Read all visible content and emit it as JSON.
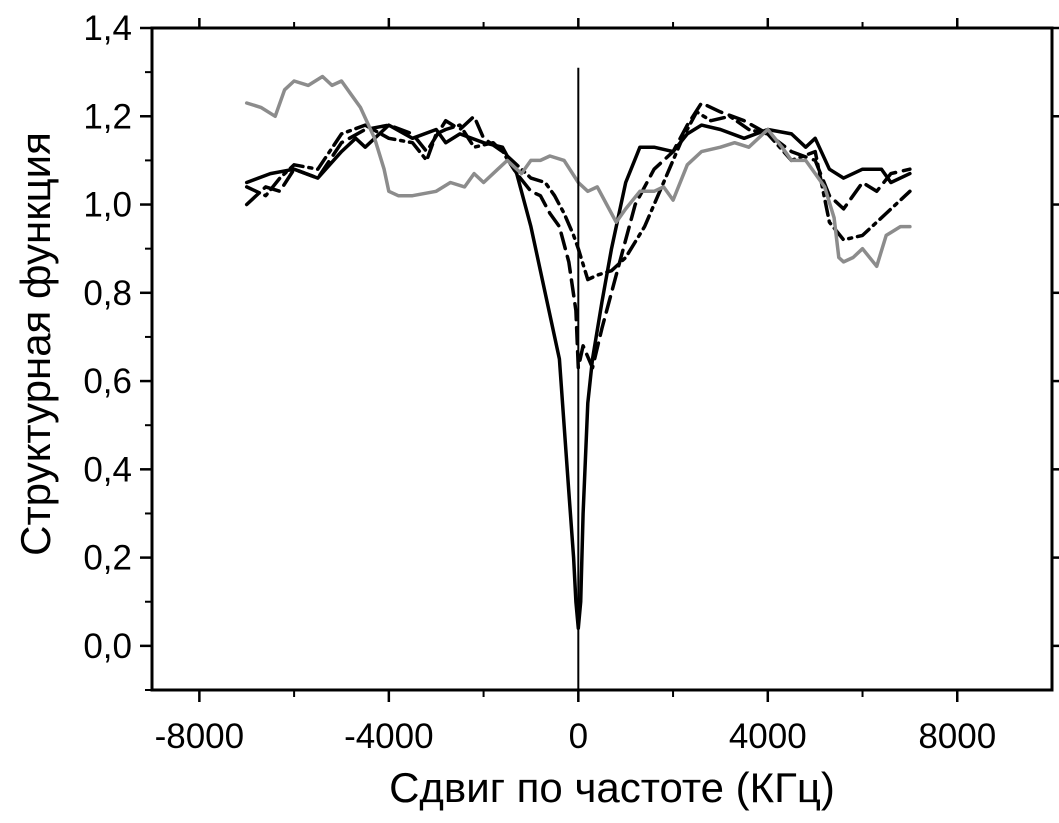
{
  "chart_data": {
    "type": "line",
    "xlabel": "Сдвиг по частоте (КГц)",
    "ylabel": "Структурная функция",
    "xlim": [
      -9000,
      10000
    ],
    "ylim": [
      -0.1,
      1.4
    ],
    "x_ticks": [
      -8000,
      -4000,
      0,
      4000,
      8000
    ],
    "x_tick_labels": [
      "-8000",
      "-4000",
      "0",
      "4000",
      "8000"
    ],
    "y_ticks": [
      0.0,
      0.2,
      0.4,
      0.6,
      0.8,
      1.0,
      1.2,
      1.4
    ],
    "y_tick_labels": [
      "0,0",
      "0,2",
      "0,4",
      "0,6",
      "0,8",
      "1,0",
      "1,2",
      "1,4"
    ],
    "grid": false,
    "legend": "none",
    "reference_line_x": 0,
    "series": [
      {
        "style": "solid",
        "color": "#000000",
        "x": [
          -7000,
          -6500,
          -6000,
          -5500,
          -5000,
          -4700,
          -4500,
          -4200,
          -4000,
          -3500,
          -3000,
          -2800,
          -2500,
          -2000,
          -1600,
          -1300,
          -1000,
          -800,
          -600,
          -400,
          -300,
          -200,
          -100,
          -50,
          0,
          50,
          100,
          200,
          300,
          500,
          700,
          1000,
          1300,
          1600,
          2000,
          2300,
          2600,
          3000,
          3500,
          4000,
          4500,
          4800,
          5000,
          5300,
          5600,
          6000,
          6400,
          6600,
          7000
        ],
        "y": [
          1.05,
          1.07,
          1.08,
          1.06,
          1.12,
          1.15,
          1.13,
          1.16,
          1.18,
          1.15,
          1.17,
          1.14,
          1.16,
          1.14,
          1.13,
          1.07,
          0.95,
          0.85,
          0.75,
          0.65,
          0.5,
          0.35,
          0.2,
          0.1,
          0.04,
          0.1,
          0.3,
          0.55,
          0.65,
          0.78,
          0.9,
          1.05,
          1.13,
          1.13,
          1.12,
          1.16,
          1.18,
          1.17,
          1.15,
          1.17,
          1.16,
          1.13,
          1.15,
          1.08,
          1.06,
          1.08,
          1.08,
          1.05,
          1.07
        ]
      },
      {
        "style": "dashed",
        "color": "#000000",
        "x": [
          -7000,
          -6600,
          -6300,
          -6000,
          -5500,
          -5000,
          -4500,
          -4000,
          -3500,
          -3200,
          -2800,
          -2500,
          -2200,
          -2000,
          -1600,
          -1300,
          -1000,
          -800,
          -600,
          -400,
          -200,
          -50,
          0,
          100,
          300,
          500,
          800,
          1200,
          1600,
          2000,
          2300,
          2600,
          3000,
          3500,
          4000,
          4500,
          5000,
          5300,
          5600,
          6000,
          6300,
          6600,
          7000
        ],
        "y": [
          1.0,
          1.04,
          1.03,
          1.08,
          1.06,
          1.14,
          1.17,
          1.18,
          1.16,
          1.12,
          1.19,
          1.17,
          1.2,
          1.15,
          1.12,
          1.07,
          1.03,
          1.02,
          0.98,
          0.95,
          0.87,
          0.76,
          0.63,
          0.68,
          0.63,
          0.72,
          0.84,
          1.0,
          1.08,
          1.12,
          1.18,
          1.23,
          1.21,
          1.19,
          1.16,
          1.12,
          1.1,
          1.02,
          0.99,
          1.05,
          1.03,
          1.07,
          1.08
        ]
      },
      {
        "style": "dash-dot",
        "color": "#000000",
        "x": [
          -7000,
          -6600,
          -6300,
          -6000,
          -5500,
          -5000,
          -4500,
          -4000,
          -3500,
          -3200,
          -3000,
          -2800,
          -2500,
          -2200,
          -1800,
          -1500,
          -1200,
          -1000,
          -700,
          -500,
          -300,
          -100,
          0,
          200,
          400,
          700,
          1000,
          1400,
          1800,
          2200,
          2500,
          2800,
          3200,
          3600,
          4000,
          4500,
          5000,
          5300,
          5600,
          6000,
          6500,
          7000
        ],
        "y": [
          1.04,
          1.02,
          1.06,
          1.09,
          1.08,
          1.16,
          1.18,
          1.15,
          1.14,
          1.1,
          1.16,
          1.17,
          1.18,
          1.13,
          1.14,
          1.11,
          1.08,
          1.06,
          1.05,
          1.02,
          0.98,
          0.93,
          0.9,
          0.83,
          0.84,
          0.85,
          0.88,
          0.95,
          1.05,
          1.15,
          1.21,
          1.19,
          1.2,
          1.17,
          1.16,
          1.1,
          1.12,
          0.96,
          0.92,
          0.93,
          0.98,
          1.03
        ]
      },
      {
        "style": "solid",
        "color": "#8c8c8c",
        "x": [
          -7000,
          -6700,
          -6400,
          -6200,
          -6000,
          -5700,
          -5400,
          -5200,
          -5000,
          -4800,
          -4600,
          -4300,
          -4100,
          -4000,
          -3800,
          -3500,
          -3000,
          -2700,
          -2400,
          -2200,
          -2000,
          -1700,
          -1500,
          -1200,
          -1000,
          -800,
          -600,
          -300,
          0,
          200,
          400,
          600,
          800,
          1000,
          1300,
          1600,
          1800,
          2000,
          2300,
          2600,
          3000,
          3300,
          3600,
          4000,
          4300,
          4500,
          4800,
          5000,
          5200,
          5400,
          5500,
          5600,
          5800,
          6000,
          6300,
          6500,
          6800,
          7000
        ],
        "y": [
          1.23,
          1.22,
          1.2,
          1.26,
          1.28,
          1.27,
          1.29,
          1.27,
          1.28,
          1.25,
          1.22,
          1.15,
          1.08,
          1.03,
          1.02,
          1.02,
          1.03,
          1.05,
          1.04,
          1.07,
          1.05,
          1.08,
          1.1,
          1.07,
          1.1,
          1.1,
          1.11,
          1.1,
          1.05,
          1.03,
          1.04,
          1.0,
          0.96,
          0.99,
          1.03,
          1.03,
          1.04,
          1.01,
          1.09,
          1.12,
          1.13,
          1.14,
          1.13,
          1.17,
          1.13,
          1.1,
          1.1,
          1.07,
          1.04,
          0.97,
          0.88,
          0.87,
          0.88,
          0.9,
          0.86,
          0.93,
          0.95,
          0.95
        ]
      }
    ]
  }
}
